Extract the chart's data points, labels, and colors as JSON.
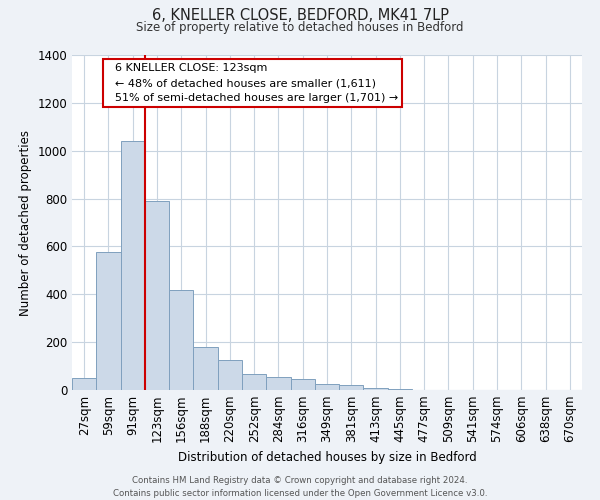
{
  "title": "6, KNELLER CLOSE, BEDFORD, MK41 7LP",
  "subtitle": "Size of property relative to detached houses in Bedford",
  "xlabel": "Distribution of detached houses by size in Bedford",
  "ylabel": "Number of detached properties",
  "bar_labels": [
    "27sqm",
    "59sqm",
    "91sqm",
    "123sqm",
    "156sqm",
    "188sqm",
    "220sqm",
    "252sqm",
    "284sqm",
    "316sqm",
    "349sqm",
    "381sqm",
    "413sqm",
    "445sqm",
    "477sqm",
    "509sqm",
    "541sqm",
    "574sqm",
    "606sqm",
    "638sqm",
    "670sqm"
  ],
  "bar_values": [
    50,
    575,
    1040,
    790,
    420,
    180,
    125,
    65,
    55,
    45,
    25,
    20,
    10,
    5,
    2,
    1,
    0,
    0,
    0,
    0,
    0
  ],
  "bar_color": "#ccd9e8",
  "bar_edge_color": "#7fa0be",
  "highlight_line_color": "#cc0000",
  "annotation_title": "6 KNELLER CLOSE: 123sqm",
  "annotation_line1": "← 48% of detached houses are smaller (1,611)",
  "annotation_line2": "51% of semi-detached houses are larger (1,701) →",
  "annotation_box_color": "#ffffff",
  "annotation_box_edge_color": "#cc0000",
  "ylim": [
    0,
    1400
  ],
  "yticks": [
    0,
    200,
    400,
    600,
    800,
    1000,
    1200,
    1400
  ],
  "footer_line1": "Contains HM Land Registry data © Crown copyright and database right 2024.",
  "footer_line2": "Contains public sector information licensed under the Open Government Licence v3.0.",
  "background_color": "#eef2f7",
  "plot_background_color": "#ffffff",
  "grid_color": "#c8d4e0"
}
